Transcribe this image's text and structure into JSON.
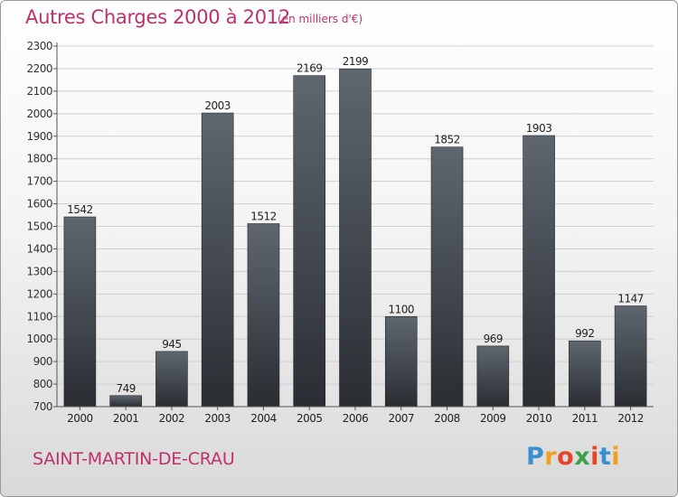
{
  "header": {
    "title": "Autres Charges 2000 à 2012",
    "unit": "(en milliers d'€)"
  },
  "footer": {
    "city": "SAINT-MARTIN-DE-CRAU",
    "logo_letters": [
      {
        "ch": "P",
        "color": "#3a8fd0"
      },
      {
        "ch": "r",
        "color": "#f0a020"
      },
      {
        "ch": "o",
        "color": "#e8452a"
      },
      {
        "ch": "x",
        "color": "#3aa049"
      },
      {
        "ch": "i",
        "color": "#e8452a"
      },
      {
        "ch": "t",
        "color": "#3a8fd0"
      },
      {
        "ch": "i",
        "color": "#f0a020"
      }
    ]
  },
  "colors": {
    "accent": "#c0306a",
    "bar_top": "#5f666e",
    "bar_bottom": "#2a2e33"
  },
  "chart_data": {
    "type": "bar",
    "categories": [
      "2000",
      "2001",
      "2002",
      "2003",
      "2004",
      "2005",
      "2006",
      "2007",
      "2008",
      "2009",
      "2010",
      "2011",
      "2012"
    ],
    "values": [
      1542,
      749,
      945,
      2003,
      1512,
      2169,
      2199,
      1100,
      1852,
      969,
      1903,
      992,
      1147
    ],
    "title": "Autres Charges 2000 à 2012",
    "ylim": [
      700,
      2300
    ],
    "yticks": [
      700,
      800,
      900,
      1000,
      1100,
      1200,
      1300,
      1400,
      1500,
      1600,
      1700,
      1800,
      1900,
      2000,
      2100,
      2200,
      2300
    ],
    "grid": true
  }
}
